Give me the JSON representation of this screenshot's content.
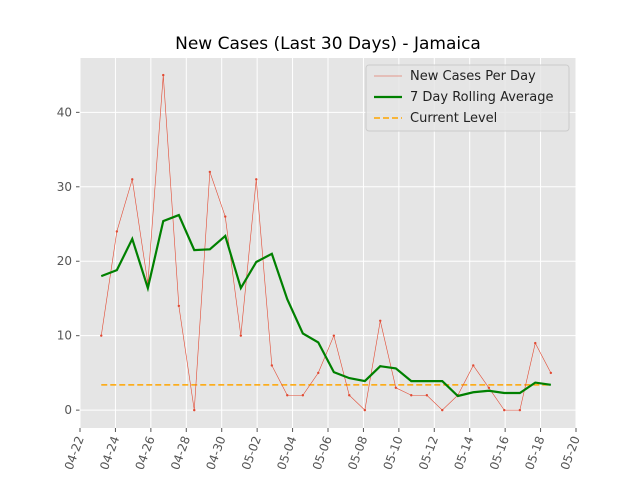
{
  "chart_data": {
    "type": "line",
    "title": "New Cases (Last 30 Days) - Jamaica",
    "x": [
      1.2,
      2.08,
      2.95,
      3.83,
      4.7,
      5.58,
      6.45,
      7.33,
      8.2,
      9.08,
      9.95,
      10.83,
      11.7,
      12.58,
      13.45,
      14.33,
      15.2,
      16.08,
      16.95,
      17.83,
      18.7,
      19.58,
      20.45,
      21.33,
      22.2,
      23.08,
      23.95,
      24.83,
      25.7,
      26.58
    ],
    "series": [
      {
        "name": "New Cases Per Day",
        "color": "#e24a33",
        "style": "thin-dots",
        "values": [
          10,
          24,
          31,
          17,
          45,
          14,
          0,
          32,
          26,
          10,
          31,
          6,
          2,
          2,
          5,
          10,
          2,
          0,
          12,
          3,
          2,
          2,
          0,
          2,
          6,
          3,
          0,
          0,
          9,
          5
        ]
      },
      {
        "name": "7 Day Rolling Average",
        "color": "#008000",
        "style": "thick",
        "values": [
          18,
          18.8,
          23,
          16.4,
          25.4,
          26.2,
          21.5,
          21.6,
          23.4,
          16.4,
          19.9,
          21,
          14.9,
          10.3,
          9.1,
          5.1,
          4.3,
          3.9,
          5.9,
          5.6,
          3.9,
          3.9,
          3.9,
          1.9,
          2.4,
          2.6,
          2.3,
          2.3,
          3.7,
          3.4
        ]
      }
    ],
    "reference": {
      "name": "Current Level",
      "color": "#ffa500",
      "value": 3.4
    },
    "xlim": [
      0,
      28
    ],
    "xticks": [
      {
        "value": 0,
        "label": "04-22"
      },
      {
        "value": 2,
        "label": "04-24"
      },
      {
        "value": 4,
        "label": "04-26"
      },
      {
        "value": 6,
        "label": "04-28"
      },
      {
        "value": 8,
        "label": "04-30"
      },
      {
        "value": 10,
        "label": "05-02"
      },
      {
        "value": 12,
        "label": "05-04"
      },
      {
        "value": 14,
        "label": "05-06"
      },
      {
        "value": 16,
        "label": "05-08"
      },
      {
        "value": 18,
        "label": "05-10"
      },
      {
        "value": 20,
        "label": "05-12"
      },
      {
        "value": 22,
        "label": "05-14"
      },
      {
        "value": 24,
        "label": "05-16"
      },
      {
        "value": 26,
        "label": "05-18"
      },
      {
        "value": 28,
        "label": "05-20"
      }
    ],
    "ylim": [
      -2.4,
      47.3
    ],
    "yticks": [
      0,
      10,
      20,
      30,
      40
    ],
    "grid": true,
    "legend": "upper right"
  }
}
